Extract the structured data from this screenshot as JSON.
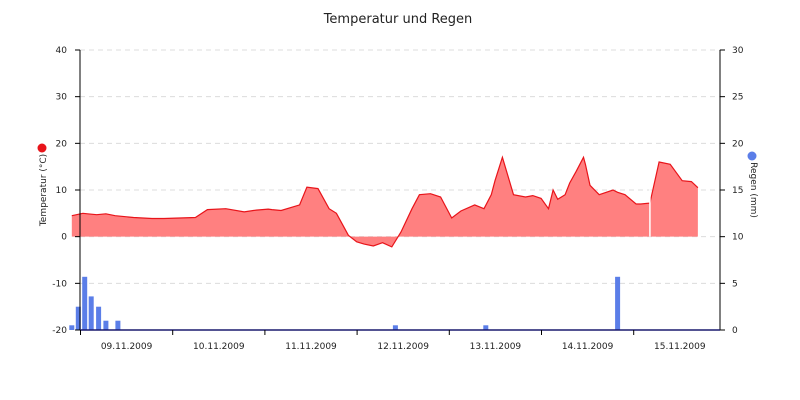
{
  "chart_data": {
    "type": "line",
    "title": "Temperatur und Regen",
    "y_left": {
      "label": "Temperatur (°C)",
      "lim": [
        -20,
        40
      ],
      "ticks": [
        40,
        30,
        20,
        10,
        0,
        -10,
        -20
      ]
    },
    "y_right": {
      "label": "Regen (mm)",
      "lim": [
        0,
        30
      ],
      "ticks": [
        30,
        25,
        20,
        15,
        10,
        5,
        0
      ]
    },
    "x_labels": [
      "09.11.2009",
      "10.11.2009",
      "11.11.2009",
      "12.11.2009",
      "13.11.2009",
      "14.11.2009",
      "15.11.2009"
    ],
    "grid": true,
    "colors": {
      "temperature": "#e8141a",
      "temperature_fill": "#ff8080",
      "rain": "#5b7ee8",
      "grid": "#dcdcdc"
    },
    "series": [
      {
        "name": "Temperatur (°C)",
        "type": "area",
        "x_unit": "days from start of 09.11.2009",
        "x": [
          -0.17,
          -0.05,
          0,
          0.1,
          0.2,
          0.3,
          0.5,
          0.7,
          0.83,
          1.0,
          1.17,
          1.3,
          1.5,
          1.7,
          1.83,
          1.96,
          2.0,
          2.1,
          2.3,
          2.38,
          2.5,
          2.62,
          2.7,
          2.83,
          2.92,
          3.0,
          3.1,
          3.2,
          3.3,
          3.4,
          3.52,
          3.6,
          3.72,
          3.83,
          3.95,
          4.05,
          4.2,
          4.3,
          4.38,
          4.42,
          4.5,
          4.62,
          4.75,
          4.83,
          4.92,
          5.0,
          5.05,
          5.1,
          5.18,
          5.23,
          5.3,
          5.38,
          5.4,
          5.45,
          5.55,
          5.7,
          5.75,
          5.83,
          5.95,
          6.0,
          6.1,
          6.2,
          6.32,
          6.45,
          6.55,
          6.62
        ],
        "y": [
          4.5,
          5.0,
          4.9,
          4.7,
          4.9,
          4.5,
          4.1,
          3.9,
          3.9,
          4.0,
          4.1,
          5.8,
          6.0,
          5.3,
          5.7,
          5.9,
          5.8,
          5.6,
          6.8,
          10.6,
          10.3,
          6.0,
          5.0,
          0.3,
          -1.1,
          -1.6,
          -2.0,
          -1.3,
          -2.2,
          1.0,
          6.0,
          9.0,
          9.2,
          8.5,
          4.0,
          5.5,
          6.8,
          6.0,
          9.0,
          12.0,
          17.0,
          9.0,
          8.5,
          8.8,
          8.2,
          6.0,
          10.0,
          8.0,
          9.0,
          11.5,
          14.0,
          17.0,
          15.5,
          11.0,
          9.0,
          10.0,
          9.5,
          9.0,
          7.0,
          7.0,
          7.2,
          16.0,
          15.5,
          12.0,
          11.8,
          10.5
        ]
      },
      {
        "name": "Regen (mm)",
        "type": "bar",
        "x_unit": "days from start of 09.11.2009",
        "x": [
          -0.17,
          -0.1,
          -0.03,
          0.04,
          0.12,
          0.2,
          0.33,
          3.34,
          4.32,
          5.75
        ],
        "values": [
          0.5,
          2.5,
          5.7,
          3.6,
          2.5,
          1.0,
          1.0,
          0.5,
          0.5,
          5.7
        ]
      }
    ]
  }
}
